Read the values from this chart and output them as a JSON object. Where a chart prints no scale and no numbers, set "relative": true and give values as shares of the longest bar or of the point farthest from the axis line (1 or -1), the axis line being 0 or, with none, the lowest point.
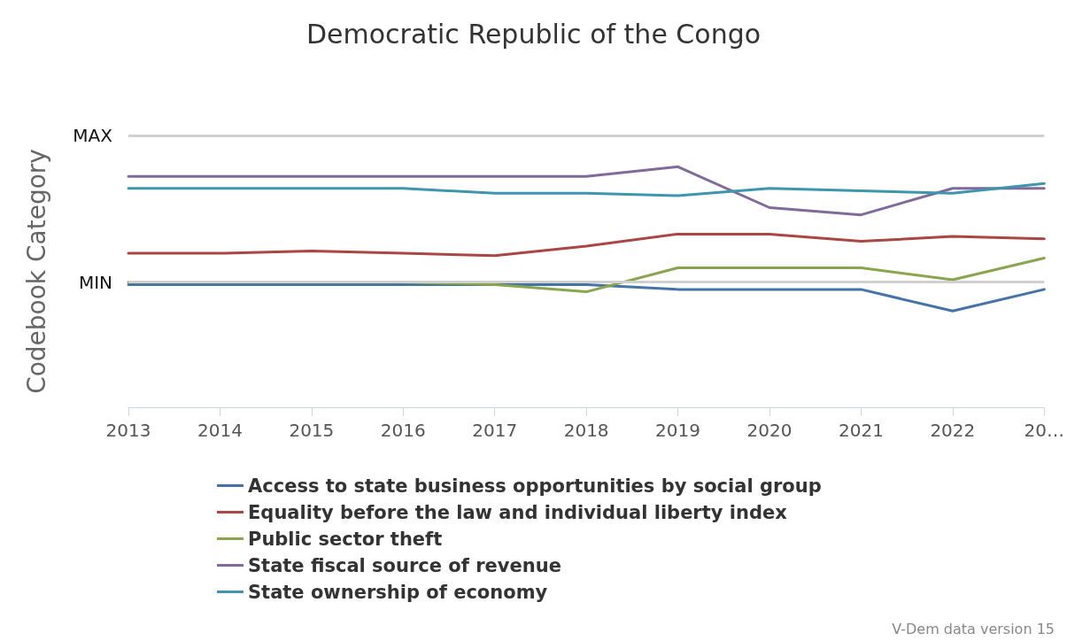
{
  "chart_data": {
    "type": "line",
    "title": "Democratic Republic of the Congo",
    "ylabel": "Codebook Category",
    "categories": [
      "2013",
      "2014",
      "2015",
      "2016",
      "2017",
      "2018",
      "2019",
      "2020",
      "2021",
      "2022",
      "20…"
    ],
    "relative": true,
    "legend": "bottom",
    "marker": "none",
    "line_style": "solid",
    "ref_lines": [
      {
        "axis": "y",
        "value": 1.13,
        "label": "MAX",
        "color": "#d0d0d0"
      },
      {
        "axis": "y",
        "value": 0.52,
        "label": "MIN",
        "color": "#d0d0d0"
      }
    ],
    "annotations": [
      "V-Dem data version 15"
    ],
    "series": [
      {
        "name": "Access to state business opportunities by social group",
        "color": "#4572a7",
        "values": [
          0.51,
          0.51,
          0.51,
          0.51,
          0.51,
          0.51,
          0.49,
          0.49,
          0.49,
          0.4,
          0.49
        ]
      },
      {
        "name": "Equality before the law and individual liberty index",
        "color": "#aa4643",
        "values": [
          0.64,
          0.64,
          0.65,
          0.64,
          0.63,
          0.67,
          0.72,
          0.72,
          0.69,
          0.71,
          0.7
        ]
      },
      {
        "name": "Public sector theft",
        "color": "#89a54e",
        "values": [
          0.52,
          0.52,
          0.52,
          0.52,
          0.51,
          0.48,
          0.58,
          0.58,
          0.58,
          0.53,
          0.62
        ]
      },
      {
        "name": "State fiscal source of revenue",
        "color": "#80699b",
        "values": [
          0.96,
          0.96,
          0.96,
          0.96,
          0.96,
          0.96,
          1,
          0.83,
          0.8,
          0.91,
          0.91
        ]
      },
      {
        "name": "State ownership of economy",
        "color": "#3d96ae",
        "values": [
          0.91,
          0.91,
          0.91,
          0.91,
          0.89,
          0.89,
          0.88,
          0.91,
          0.9,
          0.89,
          0.93
        ]
      }
    ]
  }
}
